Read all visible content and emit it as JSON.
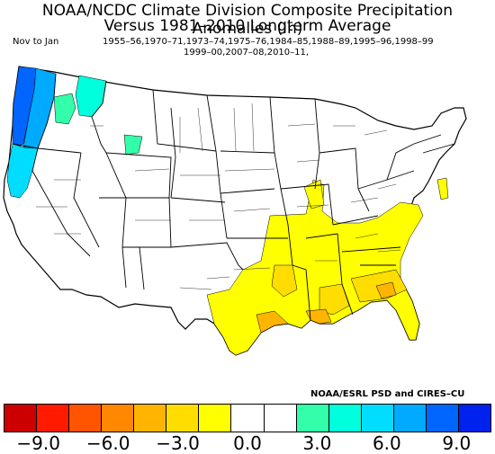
{
  "title_line1": "NOAA/NCDC Climate Division Composite Precipitation Anomalies (in)",
  "title_line2": "Versus 1981–2010 Longterm Average",
  "period": "Nov to Jan",
  "years_line1": "1955–56,1970–71,1973–74,1975–76,1984–85,1988–89,1995–96,1998–99",
  "years_line2": "1999–00,2007–08,2010–11,",
  "credit": "NOAA/ESRL PSD and CIRES–CU",
  "units": "in",
  "colorbar": {
    "colors": [
      "#cc0000",
      "#ff1a00",
      "#ff5500",
      "#ff8800",
      "#ffb500",
      "#ffdd00",
      "#ffff00",
      "#ffffff",
      "#ffffff",
      "#33ffaa",
      "#00ffdd",
      "#00ddff",
      "#00aaff",
      "#0066ff",
      "#0022ee"
    ],
    "tick_labels": [
      "−9.0",
      "−6.0",
      "−3.0",
      "0.0",
      "3.0",
      "6.0",
      "9.0"
    ],
    "tick_values": [
      -9,
      -6,
      -3,
      0,
      3,
      6,
      9
    ],
    "range": [
      -10.5,
      10.5
    ]
  },
  "anomaly_regions": [
    {
      "region": "Pacific Northwest coast",
      "anomaly": 6.5,
      "color": "#0066ff"
    },
    {
      "region": "Western Washington / Oregon",
      "anomaly": 5.0,
      "color": "#00aaff"
    },
    {
      "region": "Coastal Northern California",
      "anomaly": 4.0,
      "color": "#00ddff"
    },
    {
      "region": "Northern Idaho / Montana panhandle",
      "anomaly": 3.5,
      "color": "#33ffaa"
    },
    {
      "region": "Gulf Coast and Southeast",
      "anomaly": -1.5,
      "color": "#ffff00"
    },
    {
      "region": "Louisiana and South Carolina interior",
      "anomaly": -2.5,
      "color": "#ffdd00"
    },
    {
      "region": "Coastal Louisiana / Southeast Texas",
      "anomaly": -3.5,
      "color": "#ffb500"
    }
  ]
}
